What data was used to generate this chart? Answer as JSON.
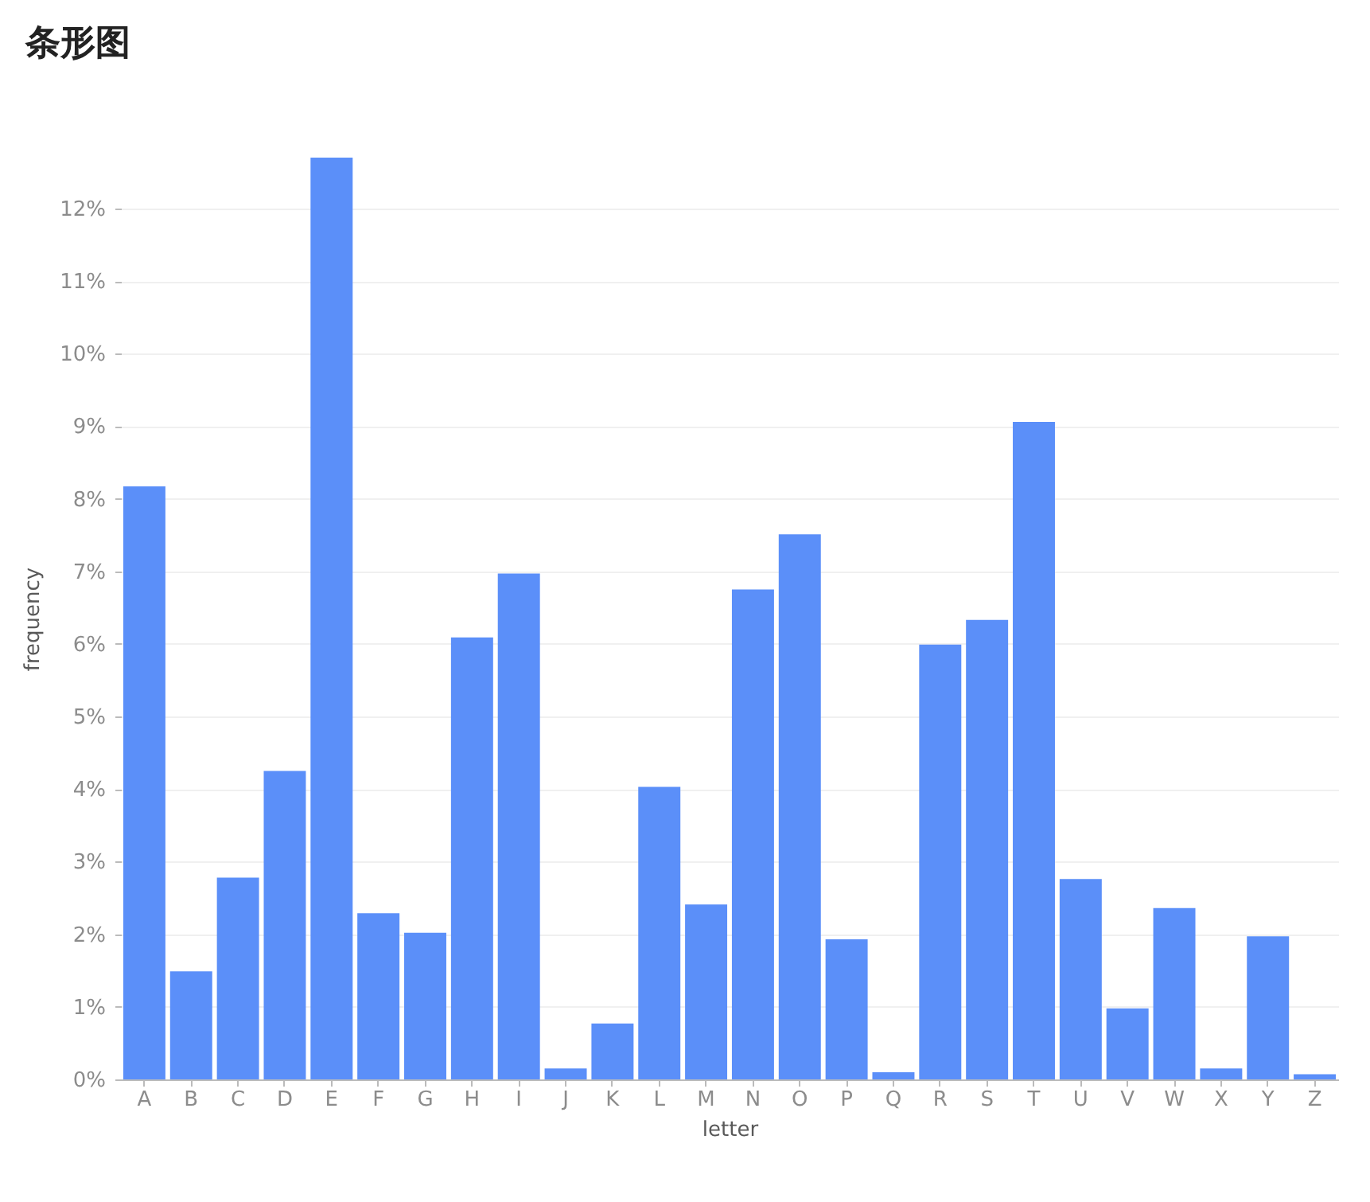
{
  "chart_data": {
    "type": "bar",
    "title": "条形图",
    "xlabel": "letter",
    "ylabel": "frequency",
    "categories": [
      "A",
      "B",
      "C",
      "D",
      "E",
      "F",
      "G",
      "H",
      "I",
      "J",
      "K",
      "L",
      "M",
      "N",
      "O",
      "P",
      "Q",
      "R",
      "S",
      "T",
      "U",
      "V",
      "W",
      "X",
      "Y",
      "Z"
    ],
    "values": [
      8.17,
      1.49,
      2.78,
      4.25,
      12.7,
      2.29,
      2.02,
      6.09,
      6.97,
      0.15,
      0.77,
      4.03,
      2.41,
      6.75,
      7.51,
      1.93,
      0.1,
      5.99,
      6.33,
      9.06,
      2.76,
      0.98,
      2.36,
      0.15,
      1.97,
      0.07
    ],
    "color": "#5b8ff9",
    "ylim": [
      0,
      12.7
    ],
    "yticks": [
      {
        "value": 0,
        "label": "0%"
      },
      {
        "value": 1,
        "label": "1%"
      },
      {
        "value": 2,
        "label": "2%"
      },
      {
        "value": 3,
        "label": "3%"
      },
      {
        "value": 4,
        "label": "4%"
      },
      {
        "value": 5,
        "label": "5%"
      },
      {
        "value": 6,
        "label": "6%"
      },
      {
        "value": 7,
        "label": "7%"
      },
      {
        "value": 8,
        "label": "8%"
      },
      {
        "value": 9,
        "label": "9%"
      },
      {
        "value": 10,
        "label": "10%"
      },
      {
        "value": 11,
        "label": "11%"
      },
      {
        "value": 12,
        "label": "12%"
      }
    ],
    "grid": "y"
  }
}
